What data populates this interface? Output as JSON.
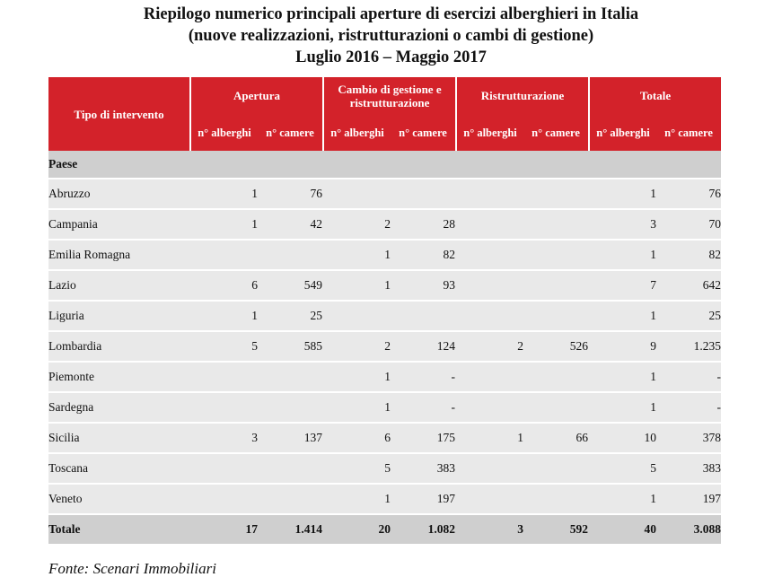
{
  "title": {
    "line1": "Riepilogo numerico principali aperture di esercizi alberghieri in Italia",
    "line2": "(nuove realizzazioni, ristrutturazioni o cambi di gestione)",
    "line3": "Luglio 2016 – Maggio 2017"
  },
  "table": {
    "col_header": "Tipo di intervento",
    "groups": [
      "Apertura",
      "Cambio di gestione e ristrutturazione",
      "Ristrutturazione",
      "Totale"
    ],
    "sub_headers": [
      "n° alberghi",
      "n° camere"
    ],
    "section_label": "Paese",
    "rows": [
      {
        "label": "Abruzzo",
        "cells": [
          "1",
          "76",
          "",
          "",
          "",
          "",
          "1",
          "76"
        ]
      },
      {
        "label": "Campania",
        "cells": [
          "1",
          "42",
          "2",
          "28",
          "",
          "",
          "3",
          "70"
        ]
      },
      {
        "label": "Emilia Romagna",
        "cells": [
          "",
          "",
          "1",
          "82",
          "",
          "",
          "1",
          "82"
        ]
      },
      {
        "label": "Lazio",
        "cells": [
          "6",
          "549",
          "1",
          "93",
          "",
          "",
          "7",
          "642"
        ]
      },
      {
        "label": "Liguria",
        "cells": [
          "1",
          "25",
          "",
          "",
          "",
          "",
          "1",
          "25"
        ]
      },
      {
        "label": "Lombardia",
        "cells": [
          "5",
          "585",
          "2",
          "124",
          "2",
          "526",
          "9",
          "1.235"
        ]
      },
      {
        "label": "Piemonte",
        "cells": [
          "",
          "",
          "1",
          "-",
          "",
          "",
          "1",
          "-"
        ]
      },
      {
        "label": "Sardegna",
        "cells": [
          "",
          "",
          "1",
          "-",
          "",
          "",
          "1",
          "-"
        ]
      },
      {
        "label": "Sicilia",
        "cells": [
          "3",
          "137",
          "6",
          "175",
          "1",
          "66",
          "10",
          "378"
        ]
      },
      {
        "label": "Toscana",
        "cells": [
          "",
          "",
          "5",
          "383",
          "",
          "",
          "5",
          "383"
        ]
      },
      {
        "label": "Veneto",
        "cells": [
          "",
          "",
          "1",
          "197",
          "",
          "",
          "1",
          "197"
        ]
      }
    ],
    "total": {
      "label": "Totale",
      "cells": [
        "17",
        "1.414",
        "20",
        "1.082",
        "3",
        "592",
        "40",
        "3.088"
      ]
    }
  },
  "source": "Fonte: Scenari Immobiliari",
  "colors": {
    "header_red": "#d3222a",
    "row_gray": "#e9e9e9",
    "section_gray": "#cfcfcf"
  }
}
